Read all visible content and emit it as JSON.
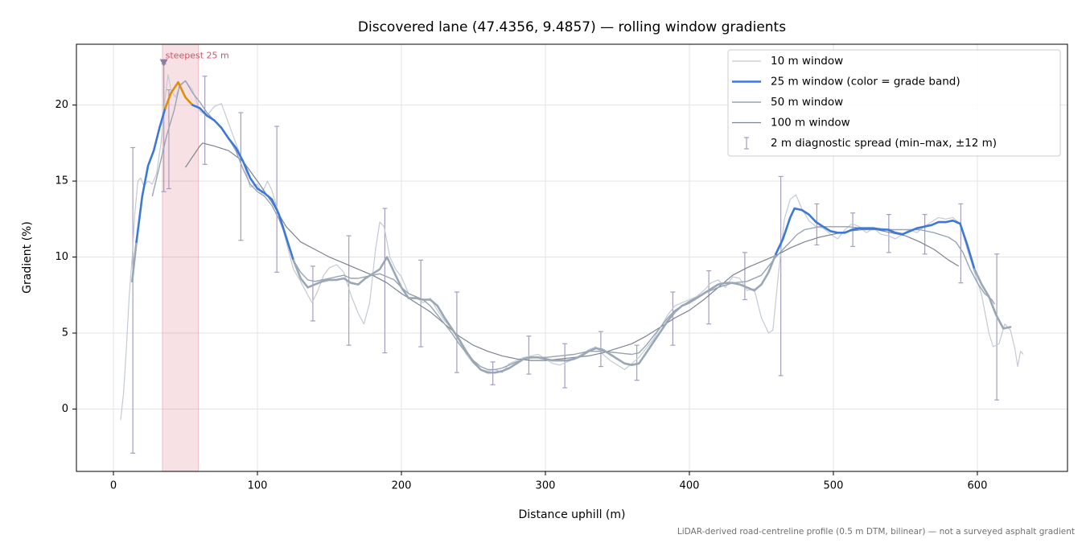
{
  "chart_data": {
    "type": "line",
    "title": "Discovered lane (47.4356, 9.4857) — rolling window gradients",
    "xlabel": "Distance uphill (m)",
    "ylabel": "Gradient (%)",
    "footnote": "LiDAR-derived road-centreline profile (0.5 m DTM, bilinear) — not a surveyed asphalt gradient",
    "xlim": [
      -25.7,
      662.6
    ],
    "ylim": [
      -4.1,
      24.0
    ],
    "xticks": [
      0,
      100,
      200,
      300,
      400,
      500,
      600
    ],
    "yticks": [
      0,
      5,
      10,
      15,
      20
    ],
    "grid": true,
    "legend": "upper right",
    "series": [
      {
        "name": "10 m window",
        "color": "#c3cad4",
        "width": 1.2,
        "x": [
          5,
          7,
          9,
          11,
          13,
          15,
          17,
          19,
          21,
          24,
          27,
          30,
          33,
          36,
          38,
          40,
          43,
          46,
          50,
          55,
          60,
          65,
          70,
          75,
          80,
          85,
          90,
          95,
          100,
          103,
          107,
          110,
          115,
          120,
          125,
          130,
          135,
          138,
          142,
          146,
          150,
          155,
          160,
          165,
          170,
          174,
          178,
          182,
          185,
          188,
          192,
          196,
          200,
          205,
          210,
          215,
          220,
          225,
          230,
          235,
          240,
          245,
          250,
          255,
          260,
          265,
          270,
          275,
          280,
          285,
          290,
          295,
          300,
          305,
          310,
          315,
          320,
          325,
          330,
          335,
          340,
          345,
          350,
          355,
          360,
          365,
          370,
          375,
          380,
          385,
          390,
          395,
          400,
          405,
          410,
          415,
          420,
          425,
          430,
          435,
          440,
          445,
          450,
          455,
          458,
          462,
          466,
          470,
          474,
          478,
          483,
          488,
          493,
          498,
          503,
          508,
          513,
          518,
          523,
          528,
          533,
          538,
          543,
          548,
          553,
          558,
          563,
          568,
          573,
          578,
          583,
          588,
          593,
          598,
          603,
          608,
          611,
          615,
          619,
          623,
          626,
          628,
          630,
          632
        ],
        "values": [
          -0.7,
          1,
          4,
          7.5,
          10,
          13,
          15,
          15.2,
          14.7,
          15,
          14.8,
          15.5,
          17.5,
          20.5,
          22,
          21,
          20.5,
          21.2,
          21.6,
          21,
          19.6,
          19.3,
          19.9,
          20.1,
          18.8,
          17.5,
          16.3,
          14.6,
          14.8,
          14.2,
          15.0,
          14.4,
          12.8,
          11.0,
          9.2,
          8.4,
          7.5,
          7.0,
          7.8,
          8.8,
          9.3,
          9.5,
          9.0,
          7.5,
          6.3,
          5.6,
          7.0,
          10.5,
          12.3,
          12.0,
          10.0,
          9.2,
          8.7,
          7.6,
          7.4,
          7.0,
          7.3,
          6.5,
          5.8,
          5.3,
          4.5,
          3.6,
          3.0,
          2.6,
          2.5,
          2.6,
          2.4,
          3.0,
          3.2,
          3.4,
          3.5,
          3.6,
          3.3,
          3.0,
          2.9,
          3.1,
          3.3,
          3.6,
          3.9,
          4.1,
          3.6,
          3.2,
          2.9,
          2.6,
          3.0,
          3.4,
          4.0,
          4.6,
          5.4,
          6.2,
          6.8,
          7.0,
          7.2,
          7.4,
          7.8,
          8.3,
          8.5,
          8.0,
          8.7,
          8.6,
          7.8,
          7.9,
          6.0,
          5.0,
          5.2,
          9.0,
          12.5,
          13.8,
          14.1,
          13.2,
          12.4,
          12.0,
          11.9,
          11.5,
          11.2,
          11.8,
          12.2,
          12.0,
          11.6,
          11.9,
          11.5,
          11.4,
          11.2,
          11.5,
          11.8,
          11.6,
          12.0,
          12.3,
          12.6,
          12.5,
          12.6,
          12.2,
          10.5,
          9.0,
          7.5,
          5.0,
          4.1,
          4.3,
          5.6,
          5.2,
          4.0,
          2.8,
          3.8,
          3.6
        ]
      },
      {
        "name": "25 m window (color = grade band)",
        "color": "#3b78d8",
        "width": 2.6,
        "bands": [
          {
            "min": 20,
            "color": "#e08c0c"
          },
          {
            "min": 10,
            "color": "#3b78d8"
          },
          {
            "min": -100,
            "color": "#9aa7b6"
          }
        ],
        "x": [
          13,
          16,
          20,
          24,
          28,
          32,
          36,
          40,
          45,
          50,
          55,
          60,
          65,
          70,
          75,
          80,
          85,
          90,
          95,
          100,
          105,
          110,
          115,
          120,
          125,
          130,
          135,
          140,
          145,
          150,
          155,
          160,
          165,
          170,
          175,
          180,
          185,
          190,
          195,
          200,
          205,
          210,
          215,
          220,
          225,
          230,
          235,
          240,
          245,
          250,
          255,
          260,
          265,
          270,
          275,
          280,
          285,
          290,
          295,
          300,
          305,
          310,
          315,
          320,
          325,
          330,
          335,
          340,
          345,
          350,
          355,
          360,
          365,
          370,
          375,
          380,
          385,
          390,
          395,
          400,
          405,
          410,
          415,
          420,
          425,
          430,
          435,
          440,
          445,
          450,
          455,
          460,
          465,
          470,
          473,
          478,
          483,
          488,
          493,
          498,
          503,
          508,
          513,
          518,
          523,
          528,
          533,
          538,
          543,
          548,
          553,
          558,
          563,
          568,
          573,
          578,
          583,
          588,
          593,
          598,
          603,
          608,
          613,
          618,
          623
        ],
        "values": [
          8.4,
          11,
          14,
          16,
          17,
          18.5,
          19.8,
          20.8,
          21.5,
          20.5,
          20,
          19.8,
          19.3,
          19.0,
          18.5,
          17.8,
          17.2,
          16.3,
          15.2,
          14.5,
          14.2,
          13.8,
          12.8,
          11.3,
          9.8,
          8.6,
          8.0,
          8.2,
          8.4,
          8.5,
          8.5,
          8.6,
          8.3,
          8.2,
          8.6,
          8.9,
          9.2,
          10.0,
          9.0,
          8.0,
          7.3,
          7.3,
          7.2,
          7.2,
          6.8,
          6.0,
          5.3,
          4.6,
          3.8,
          3.1,
          2.6,
          2.4,
          2.4,
          2.5,
          2.7,
          3.0,
          3.3,
          3.4,
          3.4,
          3.3,
          3.2,
          3.2,
          3.2,
          3.3,
          3.5,
          3.8,
          4.0,
          3.9,
          3.6,
          3.3,
          3.0,
          2.9,
          3.0,
          3.7,
          4.4,
          5.1,
          5.8,
          6.4,
          6.8,
          7.0,
          7.3,
          7.6,
          7.9,
          8.2,
          8.3,
          8.3,
          8.2,
          8.0,
          7.8,
          8.2,
          9.0,
          10.2,
          11.2,
          12.6,
          13.2,
          13.1,
          12.8,
          12.3,
          12.0,
          11.7,
          11.6,
          11.6,
          11.8,
          11.9,
          11.9,
          11.9,
          11.8,
          11.8,
          11.6,
          11.5,
          11.7,
          11.9,
          12.0,
          12.1,
          12.3,
          12.3,
          12.4,
          12.2,
          10.8,
          9.2,
          8.2,
          7.4,
          6.2,
          5.3,
          5.4
        ]
      },
      {
        "name": "50 m window",
        "color": "#98a4b3",
        "width": 1.4,
        "x": [
          27,
          32,
          37,
          42,
          46,
          50,
          55,
          60,
          65,
          70,
          75,
          80,
          85,
          90,
          95,
          100,
          105,
          110,
          115,
          120,
          125,
          130,
          135,
          140,
          145,
          150,
          155,
          160,
          165,
          170,
          175,
          180,
          185,
          190,
          195,
          200,
          205,
          210,
          215,
          220,
          225,
          230,
          235,
          240,
          245,
          250,
          255,
          260,
          265,
          270,
          275,
          280,
          285,
          290,
          300,
          310,
          320,
          330,
          340,
          350,
          360,
          365,
          370,
          375,
          380,
          385,
          390,
          400,
          410,
          420,
          430,
          440,
          450,
          455,
          460,
          465,
          470,
          475,
          480,
          490,
          500,
          510,
          520,
          530,
          540,
          550,
          560,
          570,
          580,
          585,
          590,
          595,
          600,
          605,
          610,
          612
        ],
        "values": [
          14,
          16,
          18,
          19.6,
          21.3,
          21.6,
          20.8,
          20.2,
          19.5,
          19.0,
          18.5,
          17.8,
          17.0,
          15.8,
          14.8,
          14.3,
          14.0,
          13.4,
          12.5,
          11.3,
          9.8,
          9.0,
          8.5,
          8.4,
          8.5,
          8.6,
          8.7,
          8.8,
          8.6,
          8.6,
          8.7,
          8.8,
          8.9,
          8.7,
          8.5,
          8.0,
          7.6,
          7.4,
          7.2,
          6.8,
          6.2,
          5.6,
          5.0,
          4.3,
          3.7,
          3.2,
          2.8,
          2.6,
          2.6,
          2.7,
          2.9,
          3.1,
          3.3,
          3.4,
          3.4,
          3.5,
          3.6,
          3.8,
          3.8,
          3.7,
          3.6,
          3.7,
          4.2,
          4.8,
          5.4,
          6.0,
          6.5,
          7.1,
          7.6,
          8.0,
          8.3,
          8.4,
          8.8,
          9.4,
          10.0,
          10.5,
          11.0,
          11.5,
          11.8,
          12.0,
          12.0,
          12.0,
          11.9,
          11.9,
          11.8,
          11.8,
          11.8,
          11.6,
          11.3,
          11.0,
          10.3,
          9.2,
          8.3,
          7.6,
          7.2,
          6.9
        ]
      },
      {
        "name": "100 m window",
        "color": "#7c8391",
        "width": 1.2,
        "x": [
          50,
          55,
          60,
          62,
          70,
          80,
          90,
          100,
          110,
          120,
          130,
          140,
          150,
          160,
          170,
          180,
          190,
          200,
          210,
          220,
          230,
          240,
          250,
          260,
          270,
          280,
          290,
          300,
          310,
          320,
          330,
          340,
          350,
          360,
          370,
          380,
          390,
          400,
          410,
          420,
          430,
          440,
          450,
          460,
          470,
          480,
          490,
          500,
          510,
          520,
          530,
          540,
          550,
          560,
          570,
          580,
          587
        ],
        "values": [
          15.9,
          16.6,
          17.3,
          17.5,
          17.3,
          17.0,
          16.3,
          15.0,
          13.6,
          12.0,
          11.0,
          10.5,
          10.0,
          9.6,
          9.2,
          8.8,
          8.3,
          7.6,
          7.0,
          6.4,
          5.6,
          4.8,
          4.2,
          3.8,
          3.5,
          3.3,
          3.2,
          3.2,
          3.3,
          3.4,
          3.5,
          3.7,
          4.0,
          4.3,
          4.8,
          5.4,
          6.0,
          6.5,
          7.2,
          8.0,
          8.8,
          9.3,
          9.7,
          10.1,
          10.6,
          11.0,
          11.3,
          11.5,
          11.7,
          11.8,
          11.8,
          11.6,
          11.4,
          11.0,
          10.5,
          9.8,
          9.4
        ]
      }
    ],
    "errorbars": {
      "name": "2 m diagnostic spread (min–max, ±12 m)",
      "color": "#a79dbf",
      "x": [
        13.5,
        35,
        38.5,
        63.5,
        88.5,
        113.5,
        138.5,
        163.5,
        188.5,
        213.5,
        238.5,
        263.5,
        288.5,
        313.5,
        338.5,
        363.5,
        388.5,
        413.5,
        438.5,
        463.5,
        488.5,
        513.5,
        538.5,
        563.5,
        588.5,
        613.5
      ],
      "low": [
        -2.9,
        14.3,
        14.5,
        16.1,
        11.1,
        9.0,
        5.8,
        4.2,
        3.7,
        4.1,
        2.4,
        1.6,
        2.3,
        1.4,
        2.8,
        1.9,
        4.2,
        5.6,
        7.2,
        2.2,
        10.8,
        10.7,
        10.3,
        10.2,
        8.3,
        0.6
      ],
      "high": [
        17.2,
        22.7,
        21.0,
        21.9,
        19.5,
        18.6,
        9.4,
        11.4,
        13.2,
        9.8,
        7.7,
        3.1,
        4.8,
        4.3,
        5.1,
        4.2,
        7.7,
        9.1,
        10.3,
        15.3,
        13.5,
        12.9,
        12.8,
        12.8,
        13.5,
        10.2
      ]
    },
    "highlight": {
      "label": "steepest 25 m",
      "xrange": [
        34,
        59
      ],
      "color": "#d65064",
      "marker_x": 35,
      "marker_y": 22.8,
      "marker_color": "#8a7fa0"
    }
  }
}
